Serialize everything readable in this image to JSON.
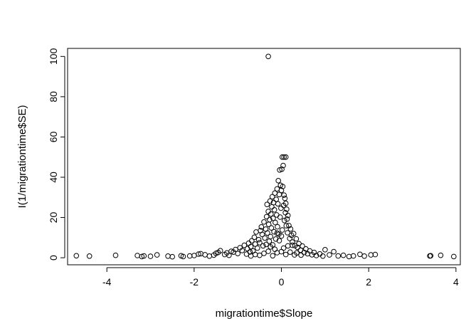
{
  "chart_data": {
    "type": "scatter",
    "title": "",
    "xlabel": "migrationtime$Slope",
    "ylabel": "I(1/migrationtime$SE)",
    "xlim": [
      -4.9,
      4.1
    ],
    "ylim": [
      -3.5,
      104
    ],
    "xticks": [
      -4,
      -2,
      0,
      2,
      4
    ],
    "yticks": [
      0,
      20,
      40,
      60,
      80,
      100
    ],
    "grid": false,
    "legend": "none",
    "marker": "open-circle",
    "colors": {
      "marker": "#000000",
      "axis": "#000000",
      "background": "#ffffff"
    },
    "points": [
      [
        -4.7,
        1.0
      ],
      [
        -4.4,
        0.8
      ],
      [
        -3.8,
        1.2
      ],
      [
        -3.3,
        1.1
      ],
      [
        -3.2,
        0.6
      ],
      [
        -3.15,
        0.9
      ],
      [
        -3.0,
        0.7
      ],
      [
        -2.85,
        1.4
      ],
      [
        -2.6,
        0.8
      ],
      [
        -2.5,
        0.5
      ],
      [
        -2.3,
        1.0
      ],
      [
        -2.25,
        0.6
      ],
      [
        -2.1,
        0.9
      ],
      [
        -2.0,
        1.1
      ],
      [
        -1.9,
        1.8
      ],
      [
        -1.85,
        2.0
      ],
      [
        -1.75,
        1.5
      ],
      [
        -1.65,
        0.8
      ],
      [
        -1.55,
        1.3
      ],
      [
        -1.5,
        2.2
      ],
      [
        -1.45,
        2.6
      ],
      [
        -1.4,
        3.5
      ],
      [
        -1.3,
        1.6
      ],
      [
        -1.25,
        2.4
      ],
      [
        -1.2,
        1.2
      ],
      [
        -1.15,
        3.2
      ],
      [
        -1.1,
        2.8
      ],
      [
        -1.05,
        4.1
      ],
      [
        -1.0,
        2.1
      ],
      [
        -0.95,
        5.0
      ],
      [
        -0.9,
        3.6
      ],
      [
        -0.85,
        6.2
      ],
      [
        -0.8,
        1.8
      ],
      [
        -0.78,
        4.5
      ],
      [
        -0.75,
        7.2
      ],
      [
        -0.72,
        2.9
      ],
      [
        -0.7,
        5.5
      ],
      [
        -0.68,
        8.4
      ],
      [
        -0.65,
        3.4
      ],
      [
        -0.62,
        10.2
      ],
      [
        -0.6,
        6.8
      ],
      [
        -0.58,
        12.8
      ],
      [
        -0.55,
        4.8
      ],
      [
        -0.52,
        9.0
      ],
      [
        -0.5,
        7.5
      ],
      [
        -0.48,
        13.5
      ],
      [
        -0.46,
        15.3
      ],
      [
        -0.44,
        11.6
      ],
      [
        -0.42,
        5.9
      ],
      [
        -0.4,
        17.8
      ],
      [
        -0.38,
        9.8
      ],
      [
        -0.36,
        14.2
      ],
      [
        -0.34,
        20.4
      ],
      [
        -0.33,
        26.5
      ],
      [
        -0.32,
        12.3
      ],
      [
        -0.3,
        23.0
      ],
      [
        -0.29,
        16.6
      ],
      [
        -0.28,
        8.2
      ],
      [
        -0.27,
        18.9
      ],
      [
        -0.26,
        28.2
      ],
      [
        -0.25,
        10.5
      ],
      [
        -0.24,
        21.7
      ],
      [
        -0.23,
        14.8
      ],
      [
        -0.22,
        25.3
      ],
      [
        -0.21,
        30.3
      ],
      [
        -0.2,
        6.4
      ],
      [
        -0.19,
        19.6
      ],
      [
        -0.18,
        27.4
      ],
      [
        -0.17,
        12.9
      ],
      [
        -0.16,
        23.8
      ],
      [
        -0.15,
        32.1
      ],
      [
        -0.14,
        17.5
      ],
      [
        -0.13,
        9.3
      ],
      [
        -0.12,
        29.0
      ],
      [
        -0.11,
        21.3
      ],
      [
        -0.1,
        34.2
      ],
      [
        -0.09,
        15.4
      ],
      [
        -0.08,
        26.8
      ],
      [
        -0.07,
        38.3
      ],
      [
        -0.06,
        11.7
      ],
      [
        -0.05,
        31.4
      ],
      [
        -0.04,
        43.6
      ],
      [
        -0.03,
        20.2
      ],
      [
        -0.02,
        36.0
      ],
      [
        -0.01,
        24.6
      ],
      [
        0.0,
        33.5
      ],
      [
        0.01,
        44.0
      ],
      [
        0.02,
        13.8
      ],
      [
        0.03,
        35.4
      ],
      [
        0.04,
        45.8
      ],
      [
        0.05,
        26.0
      ],
      [
        0.06,
        31.1
      ],
      [
        0.07,
        18.5
      ],
      [
        0.08,
        29.5
      ],
      [
        0.09,
        22.4
      ],
      [
        0.1,
        27.0
      ],
      [
        0.11,
        15.9
      ],
      [
        0.12,
        24.1
      ],
      [
        0.13,
        19.2
      ],
      [
        0.14,
        12.4
      ],
      [
        0.15,
        21.0
      ],
      [
        0.17,
        16.0
      ],
      [
        0.19,
        9.6
      ],
      [
        0.21,
        14.3
      ],
      [
        0.23,
        11.2
      ],
      [
        0.25,
        7.8
      ],
      [
        0.28,
        12.0
      ],
      [
        0.31,
        6.0
      ],
      [
        0.34,
        9.4
      ],
      [
        0.37,
        5.2
      ],
      [
        0.4,
        7.0
      ],
      [
        0.44,
        3.8
      ],
      [
        0.48,
        5.8
      ],
      [
        0.52,
        2.6
      ],
      [
        0.56,
        4.4
      ],
      [
        0.6,
        2.0
      ],
      [
        0.65,
        3.4
      ],
      [
        0.7,
        1.5
      ],
      [
        0.75,
        2.6
      ],
      [
        0.8,
        1.1
      ],
      [
        0.88,
        1.9
      ],
      [
        0.95,
        0.8
      ],
      [
        1.0,
        4.0
      ],
      [
        1.1,
        1.4
      ],
      [
        1.2,
        3.0
      ],
      [
        1.3,
        0.9
      ],
      [
        1.42,
        1.2
      ],
      [
        1.55,
        0.6
      ],
      [
        1.65,
        0.9
      ],
      [
        1.8,
        1.7
      ],
      [
        1.9,
        0.8
      ],
      [
        2.05,
        1.4
      ],
      [
        2.15,
        1.6
      ],
      [
        3.4,
        0.9
      ],
      [
        3.42,
        1.0
      ],
      [
        3.65,
        1.2
      ],
      [
        3.95,
        0.6
      ],
      [
        -0.5,
        1.2
      ],
      [
        -0.4,
        2.2
      ],
      [
        -0.3,
        3.2
      ],
      [
        -0.2,
        1.0
      ],
      [
        -0.1,
        2.5
      ],
      [
        0.0,
        3.0
      ],
      [
        0.1,
        1.6
      ],
      [
        0.2,
        2.8
      ],
      [
        0.3,
        1.4
      ],
      [
        -0.6,
        1.6
      ],
      [
        -0.7,
        0.9
      ],
      [
        0.35,
        2.4
      ],
      [
        0.45,
        1.3
      ],
      [
        -0.15,
        4.2
      ],
      [
        0.05,
        4.8
      ],
      [
        -0.25,
        5.4
      ],
      [
        0.15,
        5.9
      ],
      [
        -0.35,
        6.6
      ],
      [
        0.25,
        6.2
      ],
      [
        -0.05,
        8.5
      ],
      [
        0.0,
        10.8
      ],
      [
        -0.1,
        12.2
      ],
      [
        0.02,
        50.0
      ],
      [
        0.06,
        50.0
      ],
      [
        0.1,
        50.0
      ],
      [
        -0.3,
        100.0
      ]
    ]
  }
}
